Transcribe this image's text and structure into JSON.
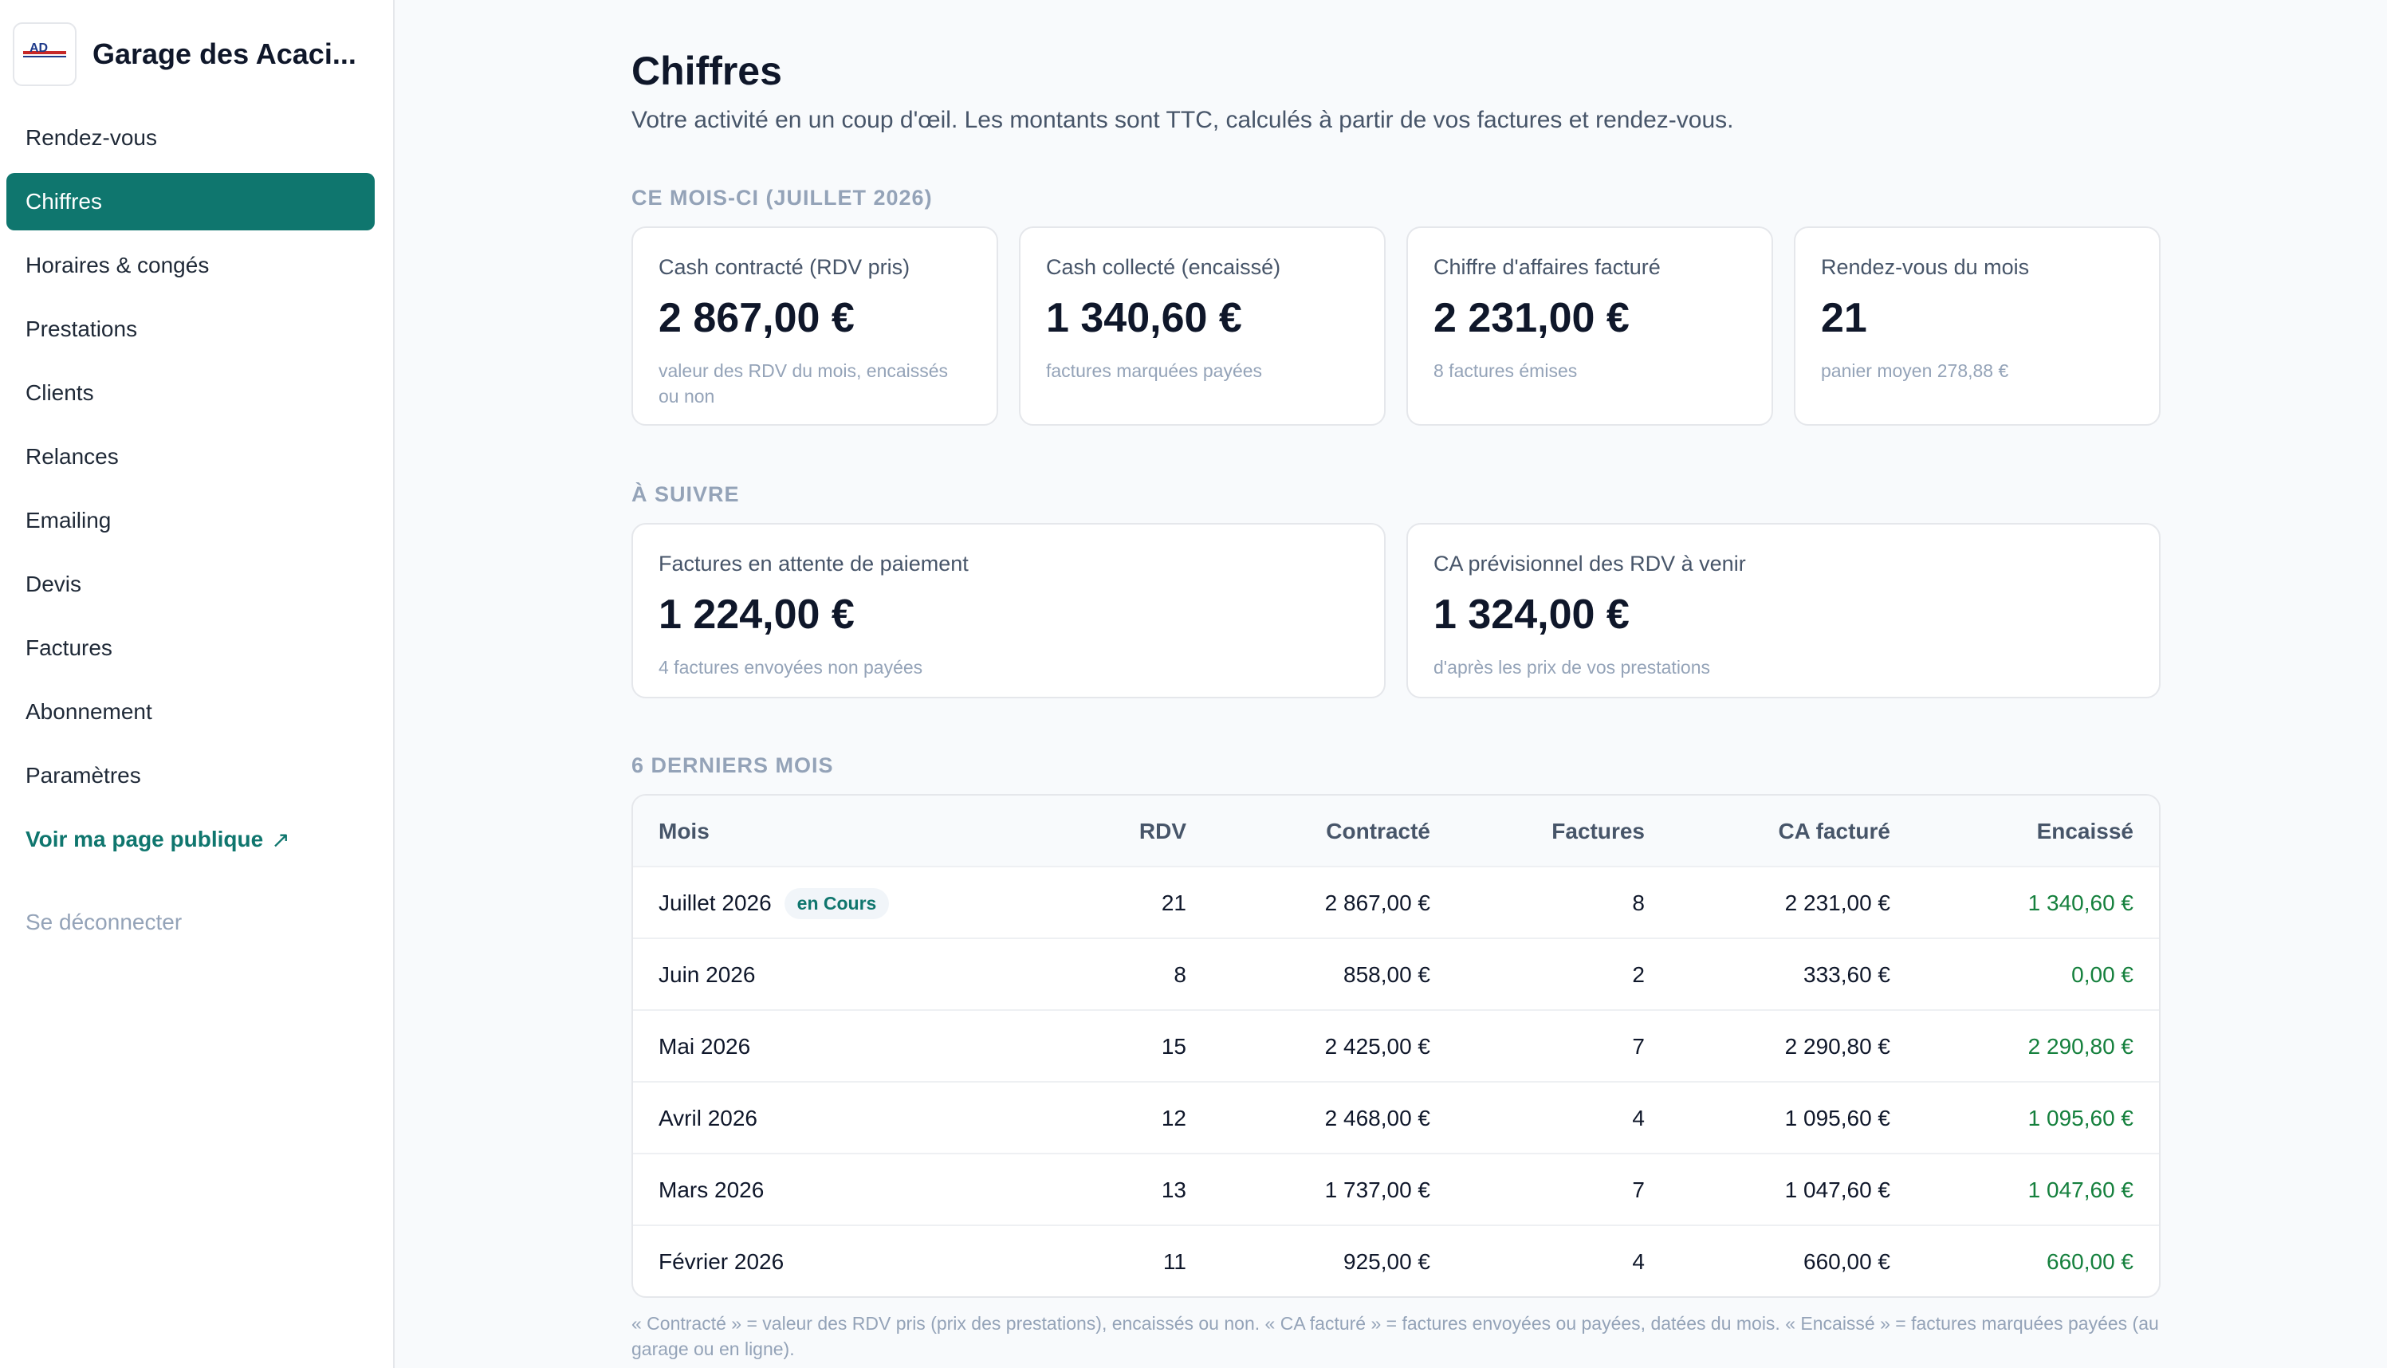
{
  "sidebar": {
    "brand_name": "Garage des Acaci...",
    "logo_text": "AD",
    "items": [
      {
        "label": "Rendez-vous"
      },
      {
        "label": "Chiffres"
      },
      {
        "label": "Horaires & congés"
      },
      {
        "label": "Prestations"
      },
      {
        "label": "Clients"
      },
      {
        "label": "Relances"
      },
      {
        "label": "Emailing"
      },
      {
        "label": "Devis"
      },
      {
        "label": "Factures"
      },
      {
        "label": "Abonnement"
      },
      {
        "label": "Paramètres"
      }
    ],
    "public_page": "Voir ma page publique",
    "public_icon": "↗",
    "logout": "Se déconnecter"
  },
  "header": {
    "title": "Chiffres",
    "subtitle": "Votre activité en un coup d'œil. Les montants sont TTC, calculés à partir de vos factures et rendez-vous."
  },
  "month": {
    "label": "CE MOIS-CI (JUILLET 2026)",
    "cards": [
      {
        "label": "Cash contracté (RDV pris)",
        "value": "2 867,00 €",
        "hint": "valeur des RDV du mois, encaissés ou non"
      },
      {
        "label": "Cash collecté (encaissé)",
        "value": "1 340,60 €",
        "hint": "factures marquées payées"
      },
      {
        "label": "Chiffre d'affaires facturé",
        "value": "2 231,00 €",
        "hint": "8 factures émises"
      },
      {
        "label": "Rendez-vous du mois",
        "value": "21",
        "hint": "panier moyen 278,88 €"
      }
    ]
  },
  "follow": {
    "label": "À SUIVRE",
    "cards": [
      {
        "label": "Factures en attente de paiement",
        "value": "1 224,00 €",
        "hint": "4 factures envoyées non payées"
      },
      {
        "label": "CA prévisionnel des RDV à venir",
        "value": "1 324,00 €",
        "hint": "d'après les prix de vos prestations"
      }
    ]
  },
  "history": {
    "label": "6 DERNIERS MOIS",
    "columns": {
      "mois": "Mois",
      "rdv": "RDV",
      "contracte": "Contracté",
      "factures": "Factures",
      "ca": "CA facturé",
      "encaisse": "Encaissé"
    },
    "current_badge": "en Cours",
    "rows": [
      {
        "mois": "Juillet 2026",
        "rdv": "21",
        "contracte": "2 867,00 €",
        "factures": "8",
        "ca": "2 231,00 €",
        "encaisse": "1 340,60 €"
      },
      {
        "mois": "Juin 2026",
        "rdv": "8",
        "contracte": "858,00 €",
        "factures": "2",
        "ca": "333,60 €",
        "encaisse": "0,00 €"
      },
      {
        "mois": "Mai 2026",
        "rdv": "15",
        "contracte": "2 425,00 €",
        "factures": "7",
        "ca": "2 290,80 €",
        "encaisse": "2 290,80 €"
      },
      {
        "mois": "Avril 2026",
        "rdv": "12",
        "contracte": "2 468,00 €",
        "factures": "4",
        "ca": "1 095,60 €",
        "encaisse": "1 095,60 €"
      },
      {
        "mois": "Mars 2026",
        "rdv": "13",
        "contracte": "1 737,00 €",
        "factures": "7",
        "ca": "1 047,60 €",
        "encaisse": "1 047,60 €"
      },
      {
        "mois": "Février 2026",
        "rdv": "11",
        "contracte": "925,00 €",
        "factures": "4",
        "ca": "660,00 €",
        "encaisse": "660,00 €"
      }
    ],
    "footnote": "« Contracté » = valeur des RDV pris (prix des prestations), encaissés ou non. « CA facturé » = factures envoyées ou payées, datées du mois. « Encaissé » = factures marquées payées (au garage ou en ligne)."
  },
  "colors": {
    "accent": "#0f766e",
    "positive": "#15803d",
    "muted": "#94a3b8"
  }
}
